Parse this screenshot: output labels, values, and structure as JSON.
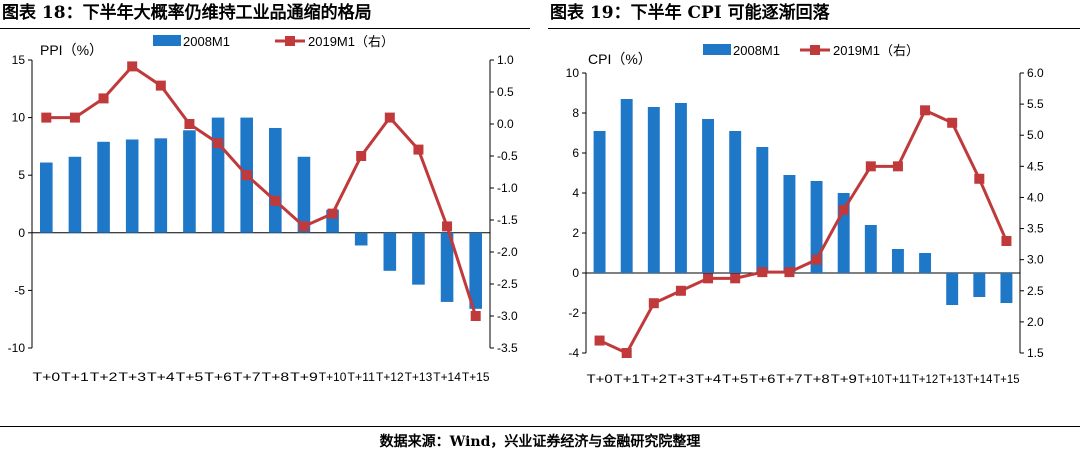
{
  "figure1": {
    "title": "图表 18：下半年大概率仍维持工业品通缩的格局"
  },
  "figure2": {
    "title": "图表 19：下半年 CPI 可能逐渐回落"
  },
  "source": "数据来源：Wind，兴业证券经济与金融研究院整理",
  "colors": {
    "bar": "#1f77c8",
    "line": "#c0393b"
  },
  "chart_data": [
    {
      "type": "bar",
      "title": "",
      "ylabel": "PPI（%）",
      "categories": [
        "T+0",
        "T+1",
        "T+2",
        "T+3",
        "T+4",
        "T+5",
        "T+6",
        "T+7",
        "T+8",
        "T+9",
        "T+10",
        "T+11",
        "T+12",
        "T+13",
        "T+14",
        "T+15"
      ],
      "ylim": [
        -10,
        15
      ],
      "yticks": [
        -10,
        -5,
        0,
        5,
        10,
        15
      ],
      "y2lim": [
        -3.5,
        1.0
      ],
      "y2ticks": [
        -3.5,
        -3.0,
        -2.5,
        -2.0,
        -1.5,
        -1.0,
        -0.5,
        0.0,
        0.5,
        1.0
      ],
      "y2ticklabels": [
        "-3.5",
        "-3.0",
        "-2.5",
        "-2.0",
        "-1.5",
        "-1.0",
        "-0.5",
        "0.0",
        "0.5",
        "1.0"
      ],
      "series": [
        {
          "name": "2008M1",
          "type": "bar",
          "axis": "left",
          "values": [
            6.1,
            6.6,
            7.9,
            8.1,
            8.2,
            8.9,
            10.0,
            10.0,
            9.1,
            6.6,
            2.0,
            -1.1,
            -3.3,
            -4.5,
            -6.0,
            -6.6
          ]
        },
        {
          "name": "2019M1（右）",
          "type": "line",
          "axis": "right",
          "values": [
            0.1,
            0.1,
            0.4,
            0.9,
            0.6,
            0.0,
            -0.3,
            -0.8,
            -1.2,
            -1.6,
            -1.4,
            -0.5,
            0.1,
            -0.4,
            -1.6,
            -3.0
          ]
        }
      ],
      "legend": "top"
    },
    {
      "type": "bar",
      "title": "",
      "ylabel": "CPI（%）",
      "categories": [
        "T+0",
        "T+1",
        "T+2",
        "T+3",
        "T+4",
        "T+5",
        "T+6",
        "T+7",
        "T+8",
        "T+9",
        "T+10",
        "T+11",
        "T+12",
        "T+13",
        "T+14",
        "T+15"
      ],
      "ylim": [
        -4,
        10
      ],
      "yticks": [
        -4,
        -2,
        0,
        2,
        4,
        6,
        8,
        10
      ],
      "y2lim": [
        1.5,
        6.0
      ],
      "y2ticks": [
        1.5,
        2.0,
        2.5,
        3.0,
        3.5,
        4.0,
        4.5,
        5.0,
        5.5,
        6.0
      ],
      "y2ticklabels": [
        "1.5",
        "2.0",
        "2.5",
        "3.0",
        "3.5",
        "4.0",
        "4.5",
        "5.0",
        "5.5",
        "6.0"
      ],
      "series": [
        {
          "name": "2008M1",
          "type": "bar",
          "axis": "left",
          "values": [
            7.1,
            8.7,
            8.3,
            8.5,
            7.7,
            7.1,
            6.3,
            4.9,
            4.6,
            4.0,
            2.4,
            1.2,
            1.0,
            -1.6,
            -1.2,
            -1.5
          ]
        },
        {
          "name": "2019M1（右）",
          "type": "line",
          "axis": "right",
          "values": [
            1.7,
            1.5,
            2.3,
            2.5,
            2.7,
            2.7,
            2.8,
            2.8,
            3.0,
            3.8,
            4.5,
            4.5,
            5.4,
            5.2,
            4.3,
            3.3
          ]
        }
      ],
      "legend": "top"
    }
  ]
}
